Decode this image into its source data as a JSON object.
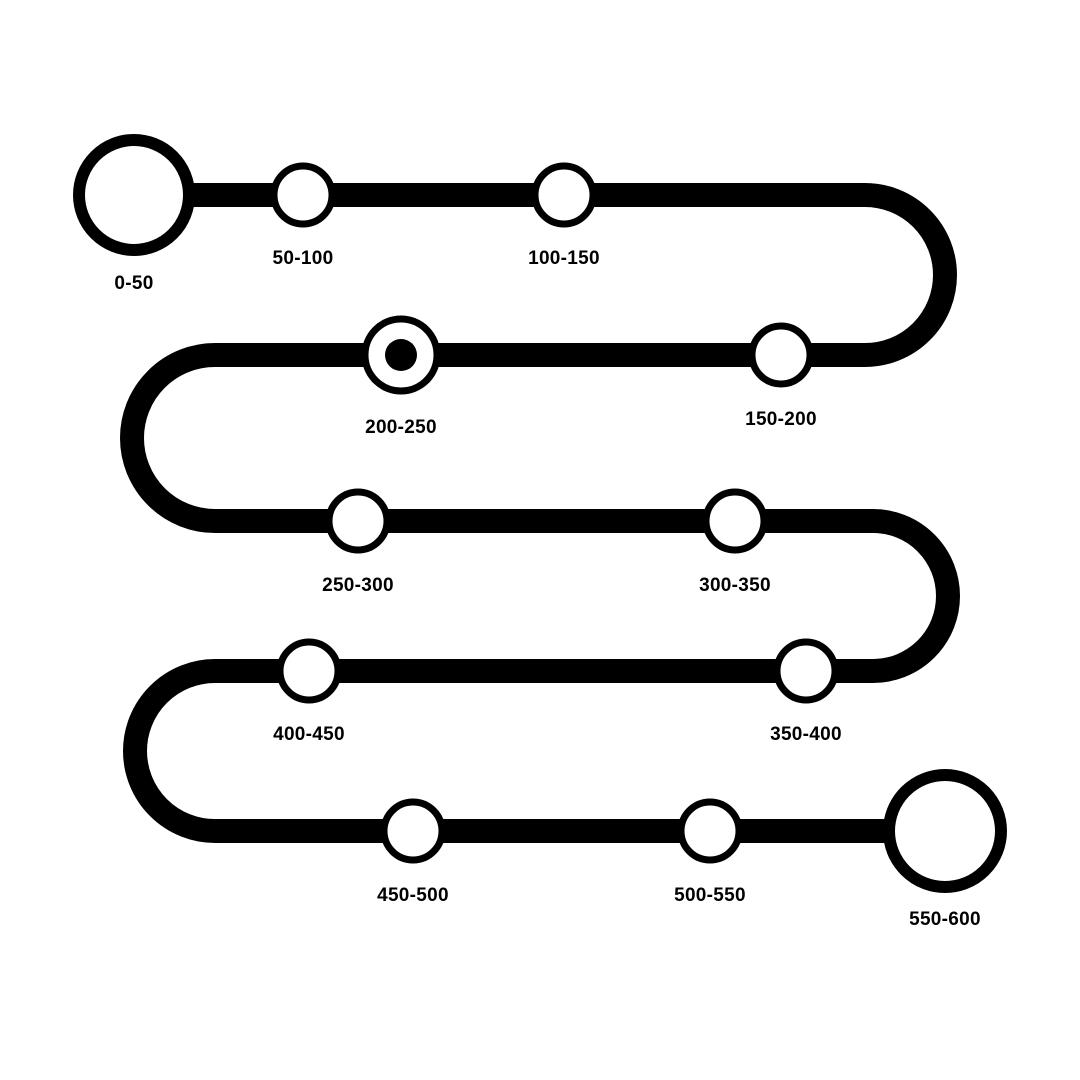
{
  "colors": {
    "ink": "#000000",
    "paper": "#ffffff"
  },
  "route": {
    "start_marker": "large-open-circle",
    "end_marker": "large-open-circle",
    "current_stop_index": 4,
    "stops": [
      {
        "label": "0-50",
        "kind": "start"
      },
      {
        "label": "50-100",
        "kind": "stop"
      },
      {
        "label": "100-150",
        "kind": "stop"
      },
      {
        "label": "150-200",
        "kind": "stop"
      },
      {
        "label": "200-250",
        "kind": "current"
      },
      {
        "label": "250-300",
        "kind": "stop"
      },
      {
        "label": "300-350",
        "kind": "stop"
      },
      {
        "label": "350-400",
        "kind": "stop"
      },
      {
        "label": "400-450",
        "kind": "stop"
      },
      {
        "label": "450-500",
        "kind": "stop"
      },
      {
        "label": "500-550",
        "kind": "stop"
      },
      {
        "label": "550-600",
        "kind": "end"
      }
    ]
  }
}
